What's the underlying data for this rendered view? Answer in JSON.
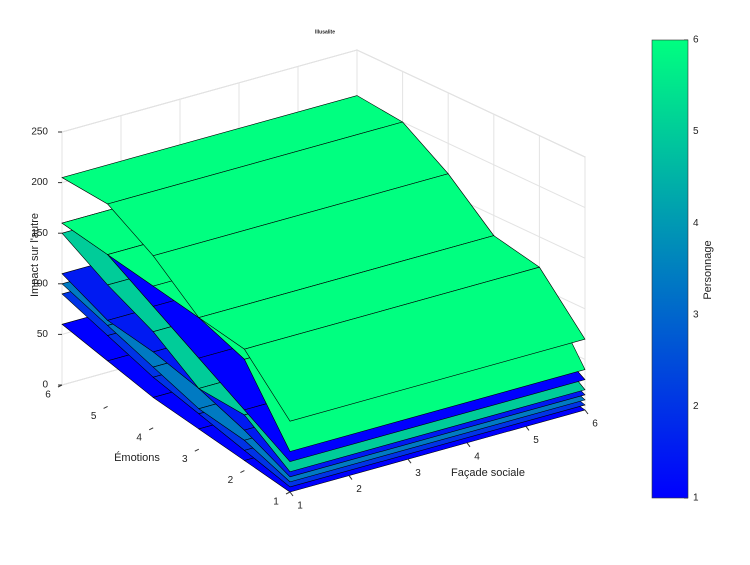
{
  "chart_data": {
    "type": "surface",
    "title": "Illusalite",
    "xlabel": "Façade sociale",
    "ylabel": "Émotions",
    "zlabel": "Impact sur l'autre",
    "xlim": [
      1,
      6
    ],
    "xticks": [
      1,
      2,
      3,
      4,
      5,
      6
    ],
    "ylim": [
      1,
      6
    ],
    "yticks": [
      1,
      2,
      3,
      4,
      5,
      6
    ],
    "zlim": [
      0,
      250
    ],
    "zticks": [
      0,
      50,
      100,
      150,
      200,
      250
    ],
    "grid": true,
    "colorbar": {
      "label": "Personnage",
      "lim": [
        1,
        6
      ],
      "ticks": [
        1,
        2,
        3,
        4,
        5,
        6
      ],
      "colors": [
        "#0000ff",
        "#00ff80"
      ]
    },
    "surfaces": [
      {
        "z": [
          0,
          10,
          20,
          30,
          45,
          60
        ],
        "c": 1
      },
      {
        "z": [
          5,
          20,
          35,
          50,
          70,
          90
        ],
        "c": 2
      },
      {
        "z": [
          10,
          30,
          40,
          60,
          80,
          100
        ],
        "c": 3.4
      },
      {
        "z": [
          15,
          40,
          60,
          75,
          85,
          110
        ],
        "c": 1.5
      },
      {
        "z": [
          20,
          55,
          60,
          95,
          120,
          150
        ],
        "c": 5
      },
      {
        "z": [
          30,
          60,
          90,
          120,
          150,
          160
        ],
        "c": 1
      },
      {
        "z": [
          40,
          110,
          130,
          140,
          150,
          160
        ],
        "c": 6
      },
      {
        "z": [
          70,
          120,
          130,
          170,
          200,
          205
        ],
        "c": 6
      }
    ]
  }
}
